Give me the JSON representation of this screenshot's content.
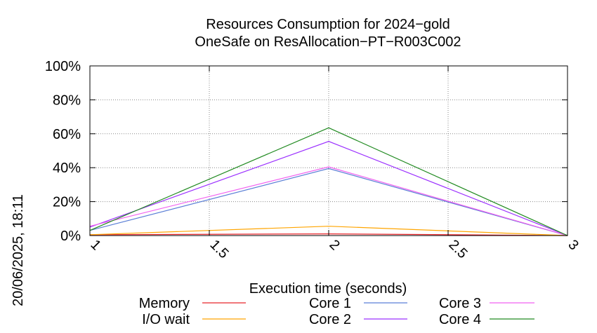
{
  "chart_data": {
    "type": "line",
    "title": "Resources Consumption for 2024−gold",
    "subtitle": "OneSafe on ResAllocation−PT−R003C002",
    "xlabel": "Execution time (seconds)",
    "ylabel": "",
    "side_label": "20/06/2025, 18:11",
    "x": [
      1,
      2,
      3
    ],
    "xlim": [
      1,
      3
    ],
    "ylim": [
      0,
      100
    ],
    "x_ticks": [
      1,
      1.5,
      2,
      2.5,
      3
    ],
    "x_tick_labels": [
      "1",
      "1.5",
      "2",
      "2.5",
      "3"
    ],
    "y_ticks": [
      0,
      20,
      40,
      60,
      80,
      100
    ],
    "y_tick_labels": [
      "0%",
      "20%",
      "40%",
      "60%",
      "80%",
      "100%"
    ],
    "grid": true,
    "legend_position": "bottom",
    "series": [
      {
        "name": "Memory",
        "color": "#e8262b",
        "values": [
          0.5,
          1,
          0
        ]
      },
      {
        "name": "I/O wait",
        "color": "#ffa500",
        "values": [
          0.5,
          5.5,
          0
        ]
      },
      {
        "name": "Core 1",
        "color": "#5b7fd6",
        "values": [
          3,
          39.5,
          0
        ]
      },
      {
        "name": "Core 2",
        "color": "#9b30ff",
        "values": [
          5,
          55.5,
          0
        ]
      },
      {
        "name": "Core 3",
        "color": "#f060f0",
        "values": [
          5.5,
          40.5,
          0
        ]
      },
      {
        "name": "Core 4",
        "color": "#228b22",
        "values": [
          3,
          63.5,
          0
        ]
      }
    ]
  }
}
